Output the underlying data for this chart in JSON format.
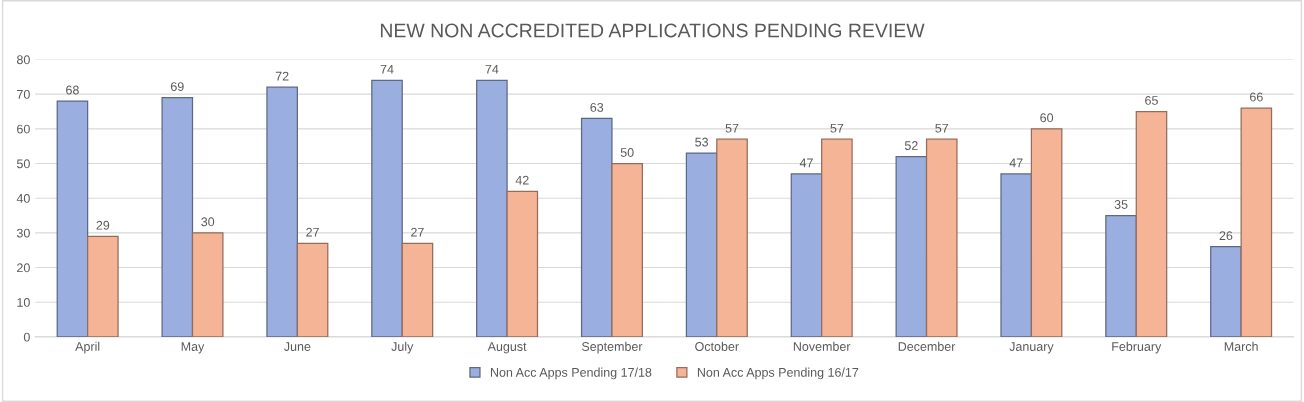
{
  "chart_data": {
    "type": "bar",
    "title": "NEW NON ACCREDITED APPLICATIONS PENDING REVIEW",
    "categories": [
      "April",
      "May",
      "June",
      "July",
      "August",
      "September",
      "October",
      "November",
      "December",
      "January",
      "February",
      "March"
    ],
    "series": [
      {
        "name": "Non Acc Apps Pending 17/18",
        "color": "#9aaee0",
        "values": [
          68,
          69,
          72,
          74,
          74,
          63,
          53,
          47,
          52,
          47,
          35,
          26
        ]
      },
      {
        "name": "Non Acc Apps Pending 16/17",
        "color": "#f6b497",
        "values": [
          29,
          30,
          27,
          27,
          42,
          50,
          57,
          57,
          57,
          60,
          65,
          66
        ]
      }
    ],
    "ylim": [
      0,
      80
    ],
    "yticks": [
      0,
      10,
      20,
      30,
      40,
      50,
      60,
      70,
      80
    ],
    "grid": "y",
    "legend": "bottom",
    "data_labels": true
  }
}
